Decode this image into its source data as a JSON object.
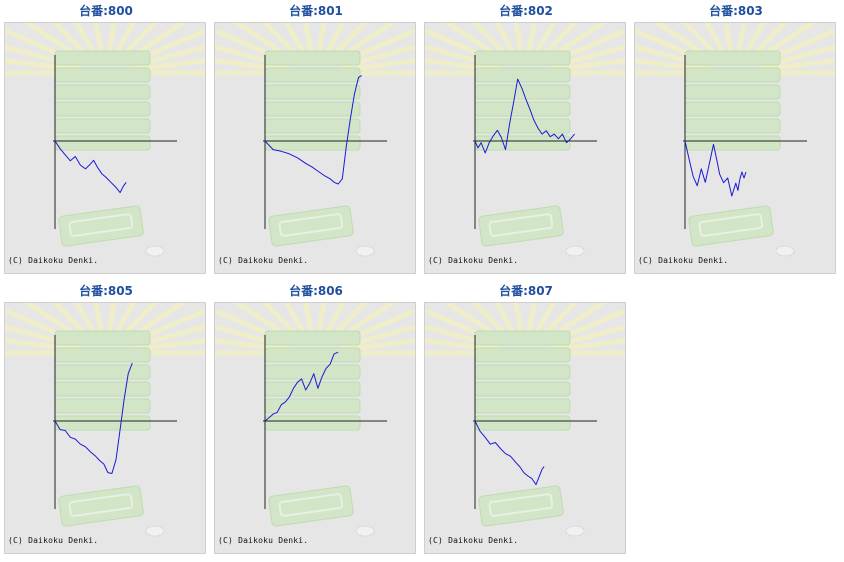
{
  "panels": [
    {
      "title": "台番:800",
      "copyright": "(C) Daikoku Denki."
    },
    {
      "title": "台番:801",
      "copyright": "(C) Daikoku Denki."
    },
    {
      "title": "台番:802",
      "copyright": "(C) Daikoku Denki."
    },
    {
      "title": "台番:803",
      "copyright": "(C) Daikoku Denki."
    },
    {
      "title": "台番:805",
      "copyright": "(C) Daikoku Denki."
    },
    {
      "title": "台番:806",
      "copyright": "(C) Daikoku Denki."
    },
    {
      "title": "台番:807",
      "copyright": "(C) Daikoku Denki."
    }
  ],
  "colors": {
    "line": "#1a1ad6",
    "axis": "#222222",
    "title": "#1f4f9e",
    "panel_bg": "#e6e6e6",
    "decor": "#cfe6c2"
  },
  "chart_data": [
    {
      "type": "line",
      "title": "台番:800",
      "xlim": [
        0,
        120
      ],
      "ylim": [
        -1600,
        2000
      ],
      "x": [
        0,
        5,
        10,
        15,
        20,
        25,
        30,
        35,
        38,
        42,
        46,
        50,
        55,
        60,
        64,
        67,
        70
      ],
      "y": [
        0,
        -180,
        -320,
        -460,
        -360,
        -560,
        -650,
        -530,
        -450,
        -620,
        -760,
        -840,
        -960,
        -1080,
        -1200,
        -1060,
        -960
      ]
    },
    {
      "type": "line",
      "title": "台番:801",
      "xlim": [
        0,
        120
      ],
      "ylim": [
        -1600,
        2000
      ],
      "x": [
        0,
        8,
        16,
        24,
        32,
        40,
        46,
        52,
        58,
        64,
        68,
        72,
        76,
        80,
        84,
        88,
        92,
        95
      ],
      "y": [
        0,
        -200,
        -240,
        -300,
        -390,
        -520,
        -600,
        -700,
        -800,
        -880,
        -960,
        -1000,
        -880,
        -120,
        520,
        1100,
        1480,
        1520
      ]
    },
    {
      "type": "line",
      "title": "台番:802",
      "xlim": [
        0,
        120
      ],
      "ylim": [
        -1600,
        2000
      ],
      "x": [
        0,
        3,
        6,
        10,
        14,
        18,
        22,
        26,
        30,
        34,
        38,
        42,
        46,
        50,
        54,
        58,
        62,
        66,
        70,
        74,
        78,
        82,
        86,
        90,
        94,
        98
      ],
      "y": [
        0,
        -160,
        -40,
        -280,
        -40,
        120,
        250,
        80,
        -200,
        400,
        900,
        1440,
        1230,
        980,
        740,
        480,
        300,
        160,
        240,
        100,
        160,
        50,
        160,
        -40,
        50,
        160
      ]
    },
    {
      "type": "line",
      "title": "台番:803",
      "xlim": [
        0,
        120
      ],
      "ylim": [
        -1600,
        2000
      ],
      "x": [
        0,
        4,
        8,
        12,
        16,
        20,
        24,
        28,
        32,
        34,
        38,
        42,
        46,
        50,
        52,
        54,
        56,
        58,
        60
      ],
      "y": [
        0,
        -420,
        -820,
        -1040,
        -650,
        -960,
        -520,
        -80,
        -520,
        -770,
        -970,
        -860,
        -1280,
        -980,
        -1150,
        -880,
        -720,
        -860,
        -720
      ]
    },
    {
      "type": "line",
      "title": "台番:805",
      "xlim": [
        0,
        120
      ],
      "ylim": [
        -1600,
        2000
      ],
      "x": [
        0,
        5,
        10,
        15,
        20,
        25,
        30,
        35,
        40,
        44,
        48,
        52,
        56,
        60,
        64,
        68,
        72,
        76
      ],
      "y": [
        0,
        -200,
        -220,
        -380,
        -420,
        -540,
        -600,
        -720,
        -820,
        -920,
        -1000,
        -1200,
        -1220,
        -900,
        -200,
        500,
        1100,
        1350
      ]
    },
    {
      "type": "line",
      "title": "台番:806",
      "xlim": [
        0,
        120
      ],
      "ylim": [
        -1600,
        2000
      ],
      "x": [
        0,
        4,
        8,
        12,
        16,
        20,
        24,
        28,
        32,
        36,
        40,
        44,
        48,
        52,
        56,
        60,
        64,
        68,
        72
      ],
      "y": [
        0,
        80,
        160,
        200,
        380,
        440,
        560,
        760,
        900,
        980,
        720,
        880,
        1100,
        760,
        1020,
        1220,
        1320,
        1560,
        1600
      ]
    },
    {
      "type": "line",
      "title": "台番:807",
      "xlim": [
        0,
        120
      ],
      "ylim": [
        -1600,
        2000
      ],
      "x": [
        0,
        5,
        10,
        15,
        20,
        25,
        30,
        35,
        40,
        44,
        48,
        52,
        56,
        60,
        64,
        66,
        68
      ],
      "y": [
        0,
        -240,
        -380,
        -540,
        -500,
        -640,
        -760,
        -820,
        -960,
        -1060,
        -1200,
        -1280,
        -1340,
        -1480,
        -1240,
        -1120,
        -1060
      ]
    }
  ]
}
